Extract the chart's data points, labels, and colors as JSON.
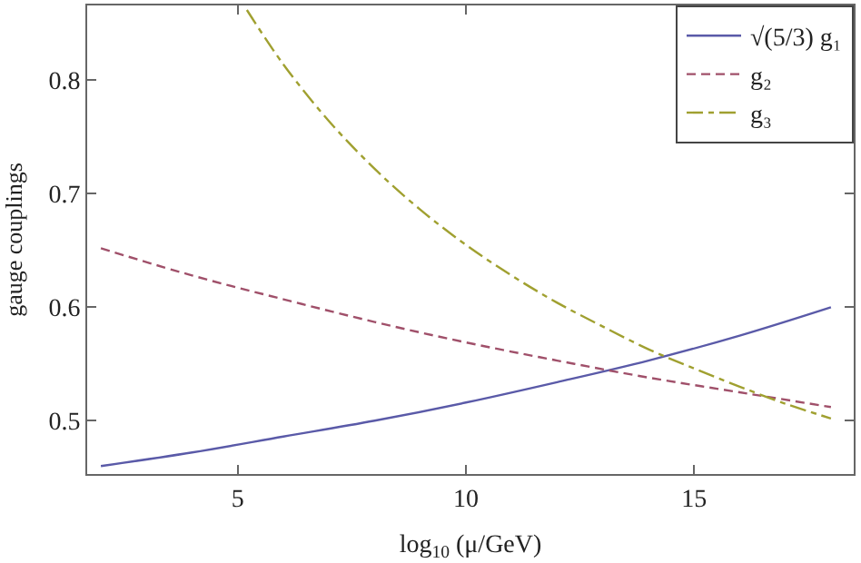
{
  "chart_data": {
    "type": "line",
    "xlabel": "log$_{10}$ (μ/GeV)",
    "ylabel": "gauge couplings",
    "xlim": [
      1.7,
      18.5
    ],
    "ylim": [
      0.453,
      0.866
    ],
    "xticks": [
      5,
      10,
      15
    ],
    "yticks": [
      0.5,
      0.6,
      0.7,
      0.8
    ],
    "legend": "top right",
    "marker": "none",
    "series": [
      {
        "name": "√(5/3) g₁",
        "color": "#5a5aa8",
        "line_style": "solid",
        "x": [
          2,
          4,
          6,
          8,
          10,
          12,
          14,
          16,
          18
        ],
        "values": [
          0.46,
          0.472,
          0.486,
          0.5,
          0.516,
          0.534,
          0.553,
          0.575,
          0.6
        ]
      },
      {
        "name": "g₂",
        "color": "#a0506a",
        "line_style": "dashed",
        "x": [
          2,
          4,
          6,
          8,
          10,
          12,
          14,
          16,
          18
        ],
        "values": [
          0.652,
          0.628,
          0.607,
          0.587,
          0.569,
          0.553,
          0.538,
          0.525,
          0.512
        ]
      },
      {
        "name": "g₃",
        "color": "#a0a030",
        "line_style": "dashdot",
        "x": [
          5.2,
          6,
          7,
          8,
          9,
          10,
          11,
          12,
          13,
          14,
          15,
          16,
          17,
          18
        ],
        "values": [
          0.862,
          0.814,
          0.764,
          0.722,
          0.686,
          0.655,
          0.628,
          0.604,
          0.583,
          0.563,
          0.546,
          0.53,
          0.515,
          0.502
        ]
      }
    ]
  }
}
